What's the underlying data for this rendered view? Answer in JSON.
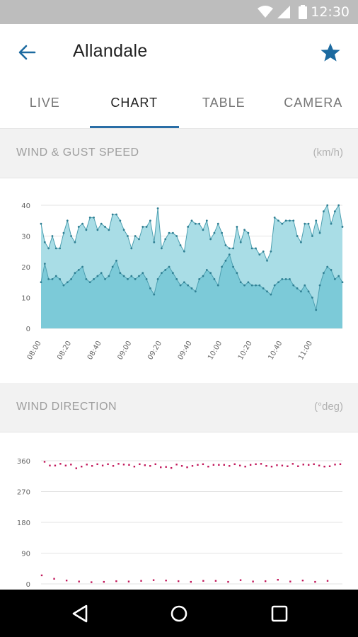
{
  "status_bar": {
    "time": "12:30",
    "icons": [
      "wifi-icon",
      "signal-icon",
      "battery-icon"
    ],
    "background": "#bdbdbd"
  },
  "app_bar": {
    "title": "Allandale",
    "back_icon": "arrow-left-icon",
    "favorite_icon": "star-icon",
    "accent": "#1c6aa0"
  },
  "tabs": [
    {
      "label": "LIVE",
      "active": false
    },
    {
      "label": "CHART",
      "active": true
    },
    {
      "label": "TABLE",
      "active": false
    },
    {
      "label": "CAMERA",
      "active": false
    }
  ],
  "wind_section": {
    "title": "WIND & GUST SPEED",
    "unit": "(km/h)"
  },
  "direction_section": {
    "title": "WIND DIRECTION",
    "unit": "(°deg)"
  },
  "nav_bar": {
    "icons": [
      "back-triangle-icon",
      "home-circle-icon",
      "recents-square-icon"
    ]
  },
  "chart_data": [
    {
      "type": "area",
      "ylim": [
        0,
        40
      ],
      "yticks": [
        0,
        10,
        20,
        30,
        40
      ],
      "xticks": [
        "08:00",
        "08:20",
        "08:40",
        "09:00",
        "09:20",
        "09:40",
        "10:00",
        "10:20",
        "10:40",
        "11:00"
      ],
      "x_minutes_range": [
        0,
        200
      ],
      "grid": true,
      "colors": {
        "gust_fill": "#a9dde6",
        "wind_fill": "#7ccad8",
        "line": "#4d9fb0",
        "point": "#2f7f93"
      },
      "series": [
        {
          "values": [
            34,
            28,
            26,
            30,
            26,
            26,
            31,
            35,
            30,
            28,
            33,
            34,
            32,
            36,
            36,
            32,
            34,
            33,
            32,
            37,
            37,
            35,
            32,
            30,
            26,
            30,
            29,
            33,
            33,
            35,
            28,
            39,
            26,
            29,
            31,
            31,
            30,
            27,
            25,
            33,
            35,
            34,
            34,
            32,
            35,
            29,
            31,
            34,
            31,
            27,
            26,
            26,
            33,
            28,
            32,
            31,
            26,
            26,
            24,
            25,
            22,
            25,
            36,
            35,
            34,
            35,
            35,
            35,
            30,
            28,
            34,
            34,
            30,
            35,
            31,
            38,
            40,
            34,
            38,
            40,
            33
          ]
        },
        {
          "values": [
            15,
            21,
            16,
            16,
            17,
            16,
            14,
            15,
            16,
            18,
            19,
            20,
            16,
            15,
            16,
            17,
            18,
            16,
            17,
            20,
            22,
            18,
            17,
            16,
            17,
            16,
            17,
            18,
            16,
            13,
            11,
            16,
            18,
            19,
            20,
            18,
            16,
            14,
            15,
            14,
            13,
            12,
            16,
            17,
            19,
            18,
            16,
            14,
            20,
            22,
            24,
            20,
            18,
            15,
            14,
            15,
            14,
            14,
            14,
            13,
            12,
            11,
            14,
            15,
            16,
            16,
            16,
            14,
            13,
            12,
            14,
            12,
            10,
            6,
            14,
            18,
            20,
            19,
            16,
            17,
            15
          ]
        }
      ]
    },
    {
      "type": "scatter",
      "ylim": [
        0,
        360
      ],
      "yticks": [
        0,
        90,
        180,
        270,
        360
      ],
      "grid": true,
      "point_color": "#c2185b",
      "upper_values": [
        357,
        346,
        346,
        351,
        346,
        349,
        338,
        343,
        349,
        345,
        350,
        346,
        350,
        345,
        351,
        349,
        348,
        343,
        350,
        347,
        345,
        350,
        341,
        342,
        339,
        349,
        345,
        341,
        345,
        348,
        350,
        343,
        348,
        348,
        348,
        345,
        350,
        346,
        343,
        348,
        350,
        351,
        345,
        343,
        347,
        346,
        344,
        351,
        344,
        349,
        348,
        350,
        346,
        343,
        344,
        349,
        350
      ],
      "lower_values": [
        25,
        15,
        10,
        7,
        5,
        6,
        8,
        7,
        9,
        11,
        10,
        8,
        6,
        9,
        9,
        6,
        11,
        7,
        8,
        12,
        7,
        10,
        6,
        9
      ]
    }
  ]
}
